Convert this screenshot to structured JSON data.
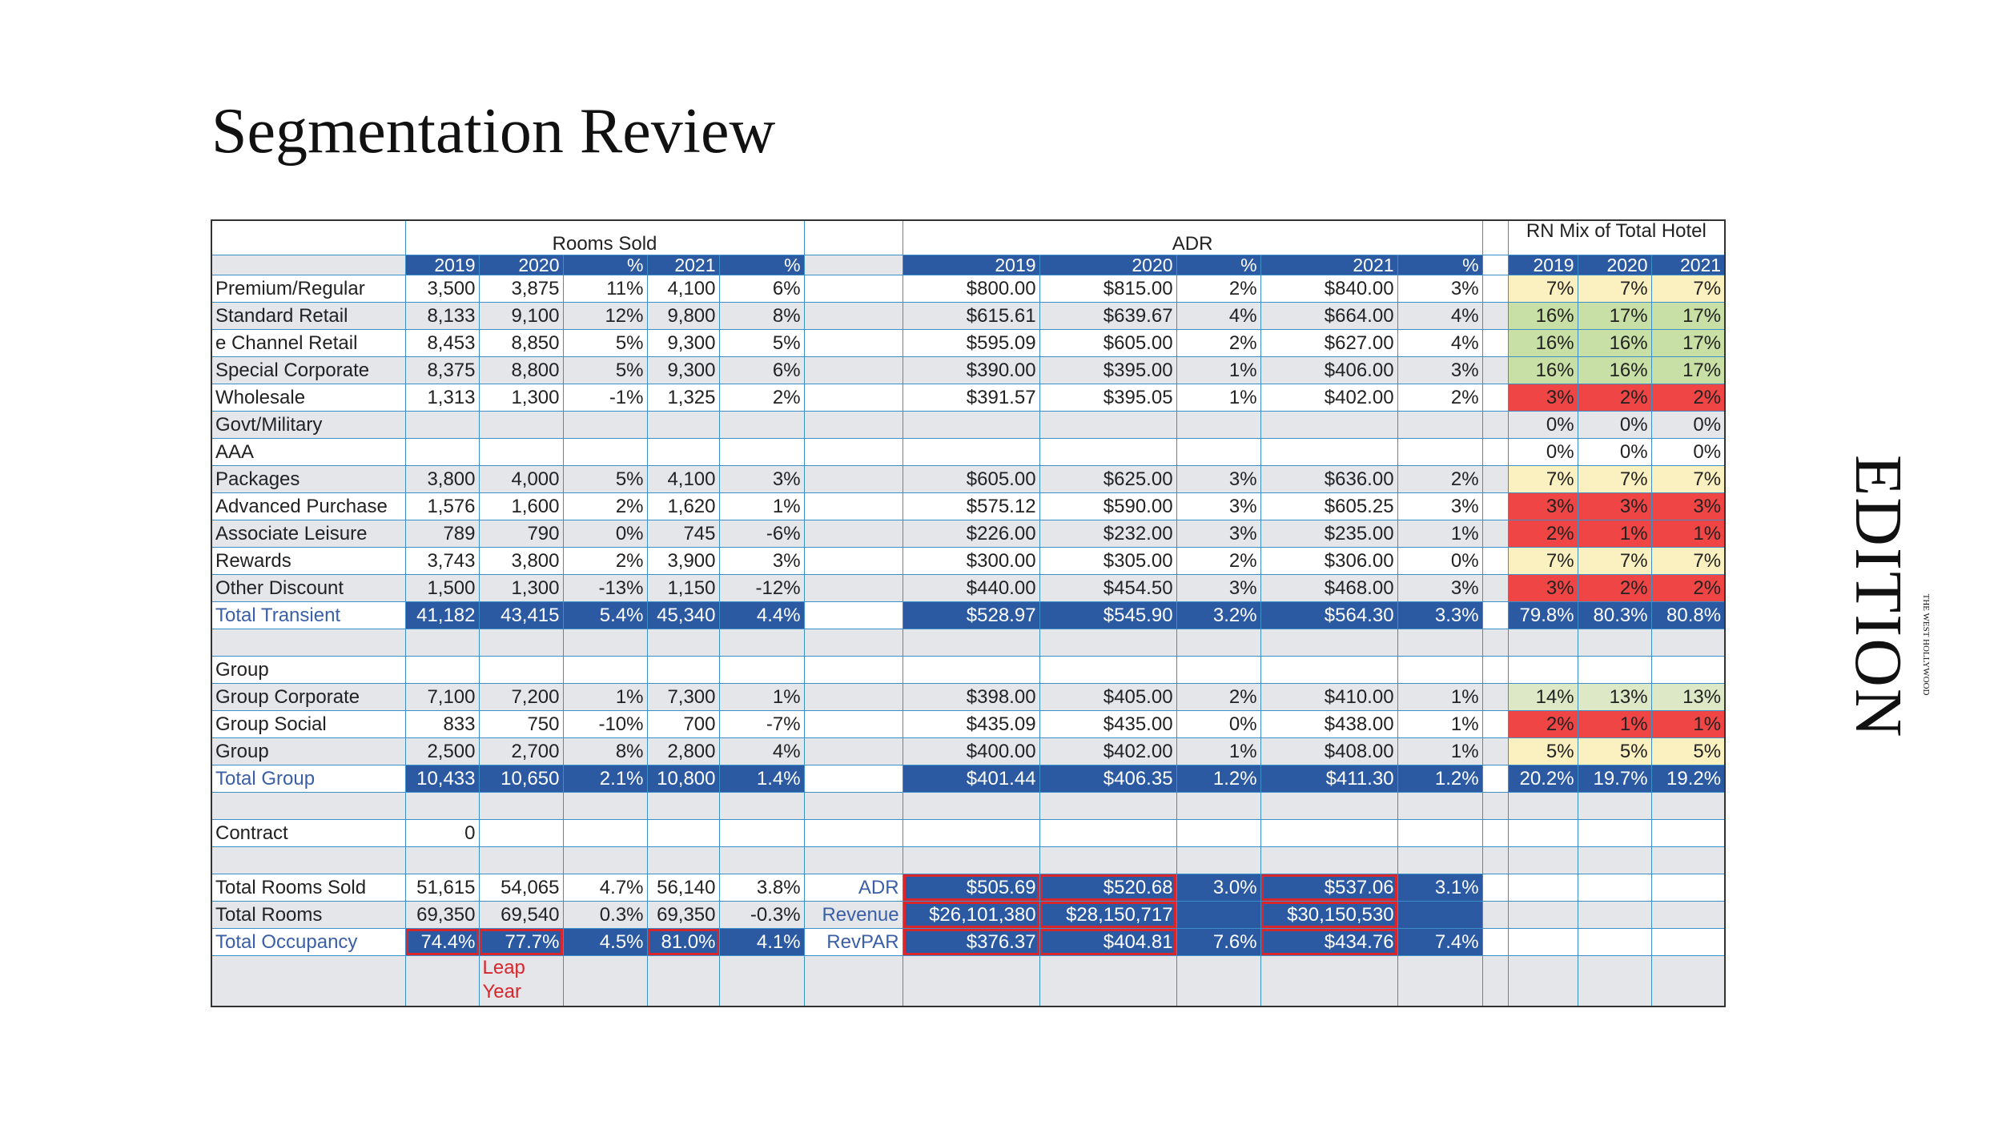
{
  "title": "Segmentation Review",
  "logo": {
    "name": "EDITION",
    "place": "THE WEST HOLLYWOOD"
  },
  "table": {
    "groups": [
      "Rooms Sold",
      "ADR",
      "RN Mix of Total Hotel"
    ],
    "rooms_header": [
      "2019",
      "2020",
      "%",
      "2021",
      "%"
    ],
    "adr_header": [
      "2019",
      "2020",
      "%",
      "2021",
      "%"
    ],
    "mix_header": [
      "2019",
      "2020",
      "2021"
    ],
    "rows": [
      {
        "label": "Premium/Regular",
        "rooms": [
          "3,500",
          "3,875",
          "11%",
          "4,100",
          "6%"
        ],
        "adr": [
          "$800.00",
          "$815.00",
          "2%",
          "$840.00",
          "3%"
        ],
        "mix": [
          "7%",
          "7%",
          "7%"
        ],
        "mix_color": "#fbf0c0"
      },
      {
        "label": "Standard Retail",
        "rooms": [
          "8,133",
          "9,100",
          "12%",
          "9,800",
          "8%"
        ],
        "adr": [
          "$615.61",
          "$639.67",
          "4%",
          "$664.00",
          "4%"
        ],
        "mix": [
          "16%",
          "17%",
          "17%"
        ],
        "mix_color": "#c8dfa6"
      },
      {
        "label": "e Channel Retail",
        "rooms": [
          "8,453",
          "8,850",
          "5%",
          "9,300",
          "5%"
        ],
        "adr": [
          "$595.09",
          "$605.00",
          "2%",
          "$627.00",
          "4%"
        ],
        "mix": [
          "16%",
          "16%",
          "17%"
        ],
        "mix_color": "#c8dfa6"
      },
      {
        "label": "Special Corporate",
        "rooms": [
          "8,375",
          "8,800",
          "5%",
          "9,300",
          "6%"
        ],
        "adr": [
          "$390.00",
          "$395.00",
          "1%",
          "$406.00",
          "3%"
        ],
        "mix": [
          "16%",
          "16%",
          "17%"
        ],
        "mix_color": "#c8dfa6"
      },
      {
        "label": "Wholesale",
        "rooms": [
          "1,313",
          "1,300",
          "-1%",
          "1,325",
          "2%"
        ],
        "adr": [
          "$391.57",
          "$395.05",
          "1%",
          "$402.00",
          "2%"
        ],
        "mix": [
          "3%",
          "2%",
          "2%"
        ],
        "mix_color": "#ef4545"
      },
      {
        "label": "Govt/Military",
        "mix": [
          "0%",
          "0%",
          "0%"
        ]
      },
      {
        "label": "AAA",
        "mix": [
          "0%",
          "0%",
          "0%"
        ]
      },
      {
        "label": "Packages",
        "rooms": [
          "3,800",
          "4,000",
          "5%",
          "4,100",
          "3%"
        ],
        "adr": [
          "$605.00",
          "$625.00",
          "3%",
          "$636.00",
          "2%"
        ],
        "mix": [
          "7%",
          "7%",
          "7%"
        ],
        "mix_color": "#fbf0c0"
      },
      {
        "label": "Advanced Purchase",
        "rooms": [
          "1,576",
          "1,600",
          "2%",
          "1,620",
          "1%"
        ],
        "adr": [
          "$575.12",
          "$590.00",
          "3%",
          "$605.25",
          "3%"
        ],
        "mix": [
          "3%",
          "3%",
          "3%"
        ],
        "mix_color": "#ef4545"
      },
      {
        "label": "Associate Leisure",
        "rooms": [
          "789",
          "790",
          "0%",
          "745",
          "-6%"
        ],
        "adr": [
          "$226.00",
          "$232.00",
          "3%",
          "$235.00",
          "1%"
        ],
        "mix": [
          "2%",
          "1%",
          "1%"
        ],
        "mix_color": "#ef4545"
      },
      {
        "label": "Rewards",
        "rooms": [
          "3,743",
          "3,800",
          "2%",
          "3,900",
          "3%"
        ],
        "adr": [
          "$300.00",
          "$305.00",
          "2%",
          "$306.00",
          "0%"
        ],
        "mix": [
          "7%",
          "7%",
          "7%"
        ],
        "mix_color": "#fbf0c0"
      },
      {
        "label": "Other Discount",
        "rooms": [
          "1,500",
          "1,300",
          "-13%",
          "1,150",
          "-12%"
        ],
        "adr": [
          "$440.00",
          "$454.50",
          "3%",
          "$468.00",
          "3%"
        ],
        "mix": [
          "3%",
          "2%",
          "2%"
        ],
        "mix_color": "#ef4545"
      },
      {
        "label": "Total Transient",
        "rooms": [
          "41,182",
          "43,415",
          "5.4%",
          "45,340",
          "4.4%"
        ],
        "adr": [
          "$528.97",
          "$545.90",
          "3.2%",
          "$564.30",
          "3.3%"
        ],
        "mix": [
          "79.8%",
          "80.3%",
          "80.8%"
        ]
      },
      {
        "label": null
      },
      {
        "label": "Group"
      },
      {
        "label": "Group Corporate",
        "rooms": [
          "7,100",
          "7,200",
          "1%",
          "7,300",
          "1%"
        ],
        "adr": [
          "$398.00",
          "$405.00",
          "2%",
          "$410.00",
          "1%"
        ],
        "mix": [
          "14%",
          "13%",
          "13%"
        ],
        "mix_color": "#dde9c6"
      },
      {
        "label": "Group Social",
        "rooms": [
          "833",
          "750",
          "-10%",
          "700",
          "-7%"
        ],
        "adr": [
          "$435.09",
          "$435.00",
          "0%",
          "$438.00",
          "1%"
        ],
        "mix": [
          "2%",
          "1%",
          "1%"
        ],
        "mix_color": "#ef4545"
      },
      {
        "label": "Group",
        "rooms": [
          "2,500",
          "2,700",
          "8%",
          "2,800",
          "4%"
        ],
        "adr": [
          "$400.00",
          "$402.00",
          "1%",
          "$408.00",
          "1%"
        ],
        "mix": [
          "5%",
          "5%",
          "5%"
        ],
        "mix_color": "#fbf0c0"
      },
      {
        "label": "Total Group",
        "rooms": [
          "10,433",
          "10,650",
          "2.1%",
          "10,800",
          "1.4%"
        ],
        "adr": [
          "$401.44",
          "$406.35",
          "1.2%",
          "$411.30",
          "1.2%"
        ],
        "mix": [
          "20.2%",
          "19.7%",
          "19.2%"
        ]
      },
      {
        "label": null
      },
      {
        "label": "Contract",
        "rooms": [
          "0",
          null,
          null,
          null,
          null
        ]
      },
      {
        "label": null
      },
      {
        "label": "Total Rooms Sold",
        "rooms": [
          "51,615",
          "54,065",
          "4.7%",
          "56,140",
          "3.8%"
        ],
        "side": "ADR",
        "adr": [
          "$505.69",
          "$520.68",
          "3.0%",
          "$537.06",
          "3.1%"
        ]
      },
      {
        "label": "Total Rooms",
        "rooms": [
          "69,350",
          "69,540",
          "0.3%",
          "69,350",
          "-0.3%"
        ],
        "side": "Revenue",
        "adr": [
          "$26,101,380",
          "$28,150,717",
          null,
          "$30,150,530",
          null
        ]
      },
      {
        "label": "Total Occupancy",
        "rooms": [
          "74.4%",
          "77.7%",
          "4.5%",
          "81.0%",
          "4.1%"
        ],
        "side": "RevPAR",
        "adr": [
          "$376.37",
          "$404.81",
          "7.6%",
          "$434.76",
          "7.4%"
        ]
      },
      {
        "label": null,
        "rooms": [
          null,
          "Leap Year",
          null,
          null,
          null
        ]
      }
    ]
  }
}
